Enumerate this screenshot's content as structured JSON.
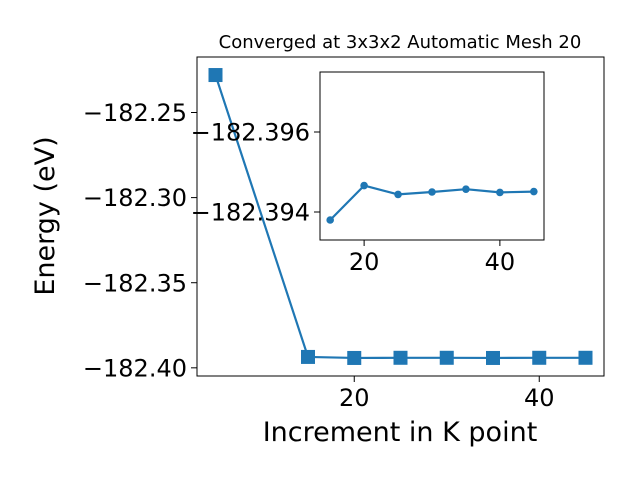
{
  "chart_data": [
    {
      "type": "line",
      "title": "Converged at 3x3x2 Automatic Mesh 20",
      "xlabel": "Increment in K point",
      "ylabel": "Energy (eV)",
      "x": [
        5,
        15,
        20,
        25,
        30,
        35,
        40,
        45
      ],
      "series": [
        {
          "values": [
            -182.228,
            -182.3936,
            -182.3942,
            -182.3941,
            -182.3941,
            -182.3942,
            -182.3941,
            -182.3941
          ],
          "color": "#1f77b4",
          "marker": "square"
        }
      ],
      "xticks": [
        20,
        40
      ],
      "xtick_labels": [
        "20",
        "40"
      ],
      "yticks": [
        -182.25,
        -182.3,
        -182.35,
        -182.4
      ],
      "ytick_labels": [
        "−182.25",
        "−182.30",
        "−182.35",
        "−182.40"
      ],
      "xlim": [
        3.0,
        47.0
      ],
      "ylim": [
        -182.4048,
        -182.2174
      ],
      "grid": false
    },
    {
      "type": "line",
      "title": "",
      "xlabel": "",
      "ylabel": "",
      "x": [
        15,
        20,
        25,
        30,
        35,
        40,
        45
      ],
      "series": [
        {
          "values": [
            -182.3938,
            -182.39466,
            -182.39444,
            -182.3945,
            -182.39457,
            -182.39449,
            -182.39451
          ],
          "color": "#1f77b4",
          "marker": "circle"
        }
      ],
      "xticks": [
        20,
        40
      ],
      "xtick_labels": [
        "20",
        "40"
      ],
      "yticks": [
        -182.396,
        -182.394
      ],
      "ytick_labels": [
        "−182.396",
        "−182.394"
      ],
      "xlim": [
        13.5,
        46.5
      ],
      "ylim": [
        -182.3933,
        -182.3975
      ],
      "grid": false
    }
  ]
}
